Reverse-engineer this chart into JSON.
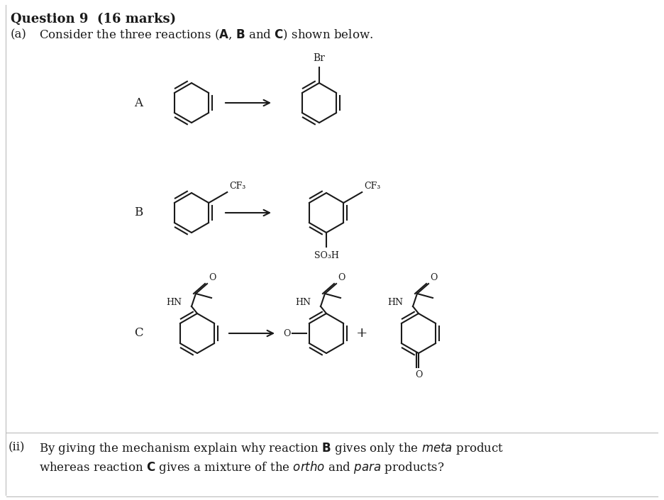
{
  "title": "Question 9  (16 marks)",
  "subtitle_a": "(a)    Consider the three reactions (\textbf{A}, \textbf{B} and \textbf{C}) shown below.",
  "footer_ii": "(ii)   By giving the mechanism explain why reaction \textbf{B} gives only the \textit{meta} product\nwhereas reaction \textbf{C} gives a mixture of the \textit{ortho} and \textit{para} products?",
  "bg_color": "#ffffff",
  "text_color": "#1a1a1a",
  "label_A": "A",
  "label_B": "B",
  "label_C": "C",
  "border_color": "#cccccc"
}
